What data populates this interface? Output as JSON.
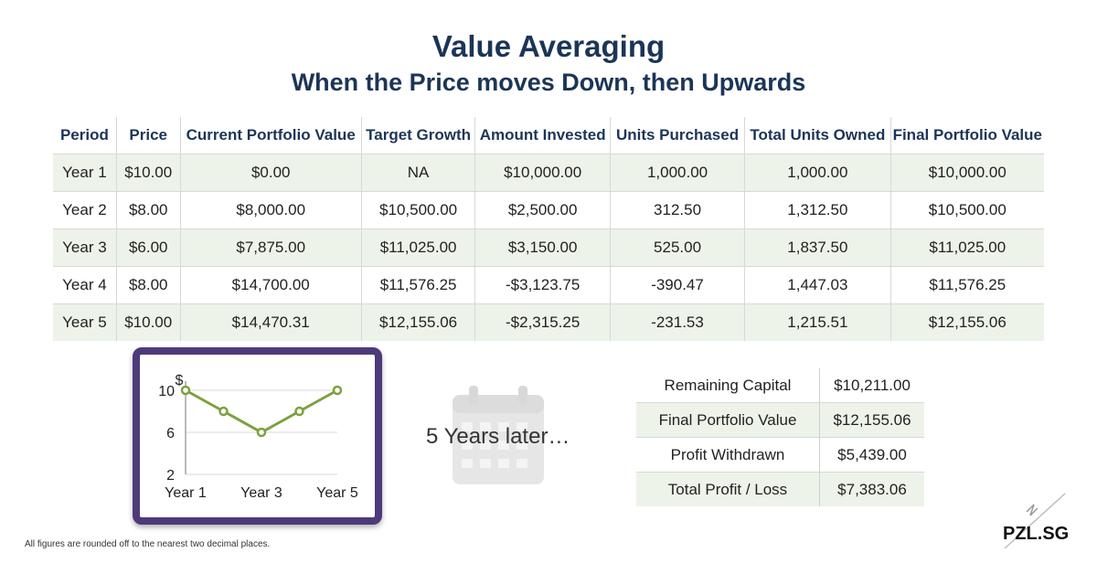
{
  "header": {
    "title": "Value Averaging",
    "subtitle": "When the Price moves Down, then Upwards"
  },
  "table": {
    "columns": [
      "Period",
      "Price",
      "Current Portfolio Value",
      "Target Growth",
      "Amount Invested",
      "Units Purchased",
      "Total Units Owned",
      "Final Portfolio Value"
    ],
    "rows": [
      [
        "Year 1",
        "$10.00",
        "$0.00",
        "NA",
        "$10,000.00",
        "1,000.00",
        "1,000.00",
        "$10,000.00"
      ],
      [
        "Year 2",
        "$8.00",
        "$8,000.00",
        "$10,500.00",
        "$2,500.00",
        "312.50",
        "1,312.50",
        "$10,500.00"
      ],
      [
        "Year 3",
        "$6.00",
        "$7,875.00",
        "$11,025.00",
        "$3,150.00",
        "525.00",
        "1,837.50",
        "$11,025.00"
      ],
      [
        "Year 4",
        "$8.00",
        "$14,700.00",
        "$11,576.25",
        "-$3,123.75",
        "-390.47",
        "1,447.03",
        "$11,576.25"
      ],
      [
        "Year 5",
        "$10.00",
        "$14,470.31",
        "$12,155.06",
        "-$2,315.25",
        "-231.53",
        "1,215.51",
        "$12,155.06"
      ]
    ]
  },
  "chart_data": {
    "type": "line",
    "x": [
      1,
      2,
      3,
      4,
      5
    ],
    "x_tick_labels": [
      "Year 1",
      "Year 3",
      "Year 5"
    ],
    "x_tick_positions": [
      1,
      3,
      5
    ],
    "y_tick_labels": [
      "10",
      "6",
      "2"
    ],
    "y_ticks": [
      10,
      6,
      2
    ],
    "ylabel": "$",
    "series": [
      {
        "values": [
          10,
          8,
          6,
          8,
          10
        ],
        "color": "#7ba23f"
      }
    ],
    "ylim": [
      2,
      10
    ],
    "grid": true
  },
  "later_text": "5 Years later…",
  "calendar_icon": "calendar-icon",
  "summary": [
    {
      "label": "Remaining Capital",
      "value": "$10,211.00"
    },
    {
      "label": "Final Portfolio Value",
      "value": "$12,155.06"
    },
    {
      "label": "Profit Withdrawn",
      "value": "$5,439.00"
    },
    {
      "label": "Total Profit / Loss",
      "value": "$7,383.06"
    }
  ],
  "footnote": "All figures are rounded off to the nearest two decimal places.",
  "brand": "PZL.SG",
  "colors": {
    "heading": "#1c3557",
    "row_stripe": "#eef3e9",
    "frame": "#4e3a7a",
    "line": "#7ba23f"
  }
}
